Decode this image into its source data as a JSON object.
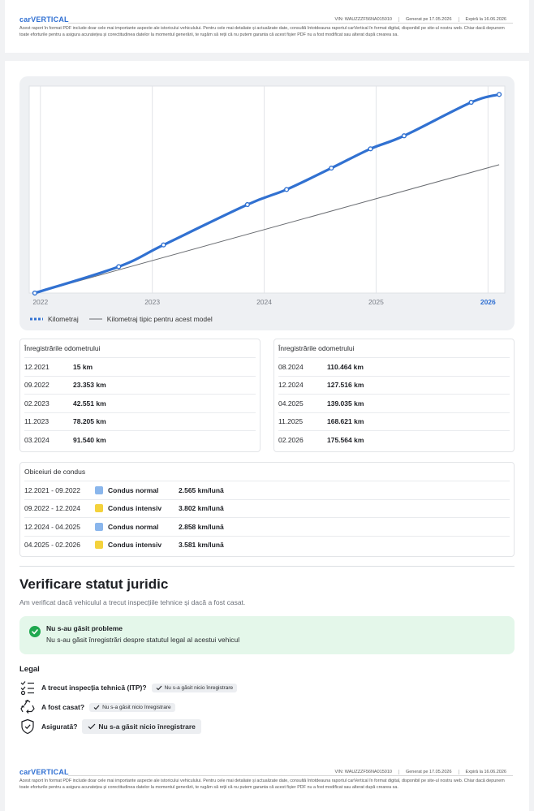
{
  "header": {
    "logo": "carVERTICAL",
    "vin": "VIN: WAUZZZF56NA015010",
    "generated": "Generat pe 17.05.2026",
    "expires": "Expiră la 16.06.2026",
    "disclaimer": "Acest raport în format PDF include doar cele mai importante aspecte ale istoricului vehiculului. Pentru cele mai detaliate și actualizate date, consultă întotdeauna raportul carVertical în format digital, disponibil pe site-ul nostru web. Chiar dacă depunem toate eforturile pentru a asigura acuratețea și corectitudinea datelor la momentul generării, te rugăm să reții că nu putem garanta că acest fișier PDF nu a fost modificat sau alterat după crearea sa."
  },
  "chart_data": {
    "type": "line",
    "x_ticks": [
      "2022",
      "2023",
      "2024",
      "2025",
      "2026"
    ],
    "highlight_tick": "2026",
    "highlight_color": "#2f6fd2",
    "grid": true,
    "legend_position": "bottom-left",
    "series": [
      {
        "name": "Kilometraj",
        "color": "#3171d1",
        "style": "thick-with-markers",
        "points": [
          {
            "x": 2021.95,
            "y": 15
          },
          {
            "x": 2022.7,
            "y": 23353
          },
          {
            "x": 2023.1,
            "y": 42551
          },
          {
            "x": 2023.85,
            "y": 78205
          },
          {
            "x": 2024.2,
            "y": 91540
          },
          {
            "x": 2024.6,
            "y": 110464
          },
          {
            "x": 2024.95,
            "y": 127516
          },
          {
            "x": 2025.25,
            "y": 139035
          },
          {
            "x": 2025.85,
            "y": 168621
          },
          {
            "x": 2026.1,
            "y": 175564
          }
        ]
      },
      {
        "name": "Kilometraj tipic pentru acest model",
        "color": "#6a6d72",
        "style": "thin",
        "points": [
          {
            "x": 2021.95,
            "y": 0
          },
          {
            "x": 2026.1,
            "y": 113500
          }
        ]
      }
    ],
    "x_range": [
      2021.9,
      2026.15
    ],
    "y_range": [
      0,
      183000
    ]
  },
  "odometer_left": {
    "title": "Înregistrările odometrului",
    "rows": [
      {
        "date": "12.2021",
        "km": "15 km"
      },
      {
        "date": "09.2022",
        "km": "23.353 km"
      },
      {
        "date": "02.2023",
        "km": "42.551 km"
      },
      {
        "date": "11.2023",
        "km": "78.205 km"
      },
      {
        "date": "03.2024",
        "km": "91.540 km"
      }
    ]
  },
  "odometer_right": {
    "title": "Înregistrările odometrului",
    "rows": [
      {
        "date": "08.2024",
        "km": "110.464 km"
      },
      {
        "date": "12.2024",
        "km": "127.516 km"
      },
      {
        "date": "04.2025",
        "km": "139.035 km"
      },
      {
        "date": "11.2025",
        "km": "168.621 km"
      },
      {
        "date": "02.2026",
        "km": "175.564 km"
      }
    ]
  },
  "driving_habits": {
    "title": "Obiceiuri de condus",
    "rows": [
      {
        "period": "12.2021 - 09.2022",
        "style": "Condus normal",
        "color": "#8ab6ec",
        "rate": "2.565 km/lună"
      },
      {
        "period": "09.2022 - 12.2024",
        "style": "Condus intensiv",
        "color": "#f4d23c",
        "rate": "3.802 km/lună"
      },
      {
        "period": "12.2024 - 04.2025",
        "style": "Condus normal",
        "color": "#8ab6ec",
        "rate": "2.858 km/lună"
      },
      {
        "period": "04.2025 - 02.2026",
        "style": "Condus intensiv",
        "color": "#f4d23c",
        "rate": "3.581 km/lună"
      }
    ]
  },
  "legal_section": {
    "title": "Verificare statut juridic",
    "subtitle": "Am verificat dacă vehiculul a trecut inspecțiile tehnice și dacă a fost casat.",
    "status_title": "Nu s-au găsit probleme",
    "status_text": "Nu s-au găsit înregistrări despre statutul legal al acestui vehicul",
    "legal_heading": "Legal",
    "items": [
      {
        "question": "A trecut inspecția tehnică (ITP)?",
        "answer": "Nu s-a găsit nicio înregistrare",
        "icon": "checklist-icon"
      },
      {
        "question": "A fost casat?",
        "answer": "Nu s-a găsit nicio înregistrare",
        "icon": "recycle-icon"
      },
      {
        "question": "Asigurată?",
        "answer": "Nu s-a găsit nicio înregistrare",
        "icon": "shield-check-icon"
      }
    ]
  }
}
